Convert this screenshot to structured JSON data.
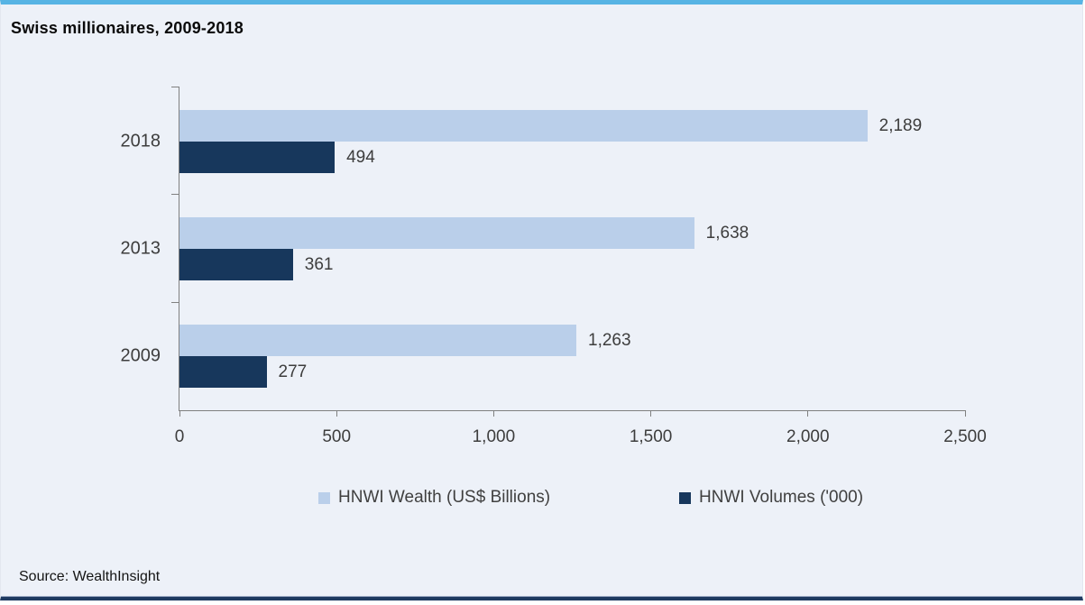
{
  "chart_data": {
    "type": "bar",
    "orientation": "horizontal",
    "title": "Swiss millionaires, 2009-2018",
    "categories": [
      "2018",
      "2013",
      "2009"
    ],
    "series": [
      {
        "name": "HNWI Wealth (US$ Billions)",
        "key": "hnwi-wealth",
        "color": "#bacfea",
        "values": [
          2189,
          1638,
          1263
        ],
        "labels": [
          "2,189",
          "1,638",
          "1,263"
        ]
      },
      {
        "name": "HNWI Volumes ('000)",
        "key": "hnwi-volumes",
        "color": "#17375c",
        "values": [
          494,
          361,
          277
        ],
        "labels": [
          "494",
          "361",
          "277"
        ]
      }
    ],
    "xlim": [
      0,
      2500
    ],
    "x_ticks": [
      "0",
      "500",
      "1,000",
      "1,500",
      "2,000",
      "2,500"
    ],
    "legend_position": "bottom",
    "grid": false,
    "source": "Source: WealthInsight"
  },
  "theme": {
    "background": "#edf1f8",
    "top_border": "#57b4e4",
    "bottom_border": "#1e3a61",
    "axis_color": "#808080",
    "text_color": "#3d3d3d"
  }
}
